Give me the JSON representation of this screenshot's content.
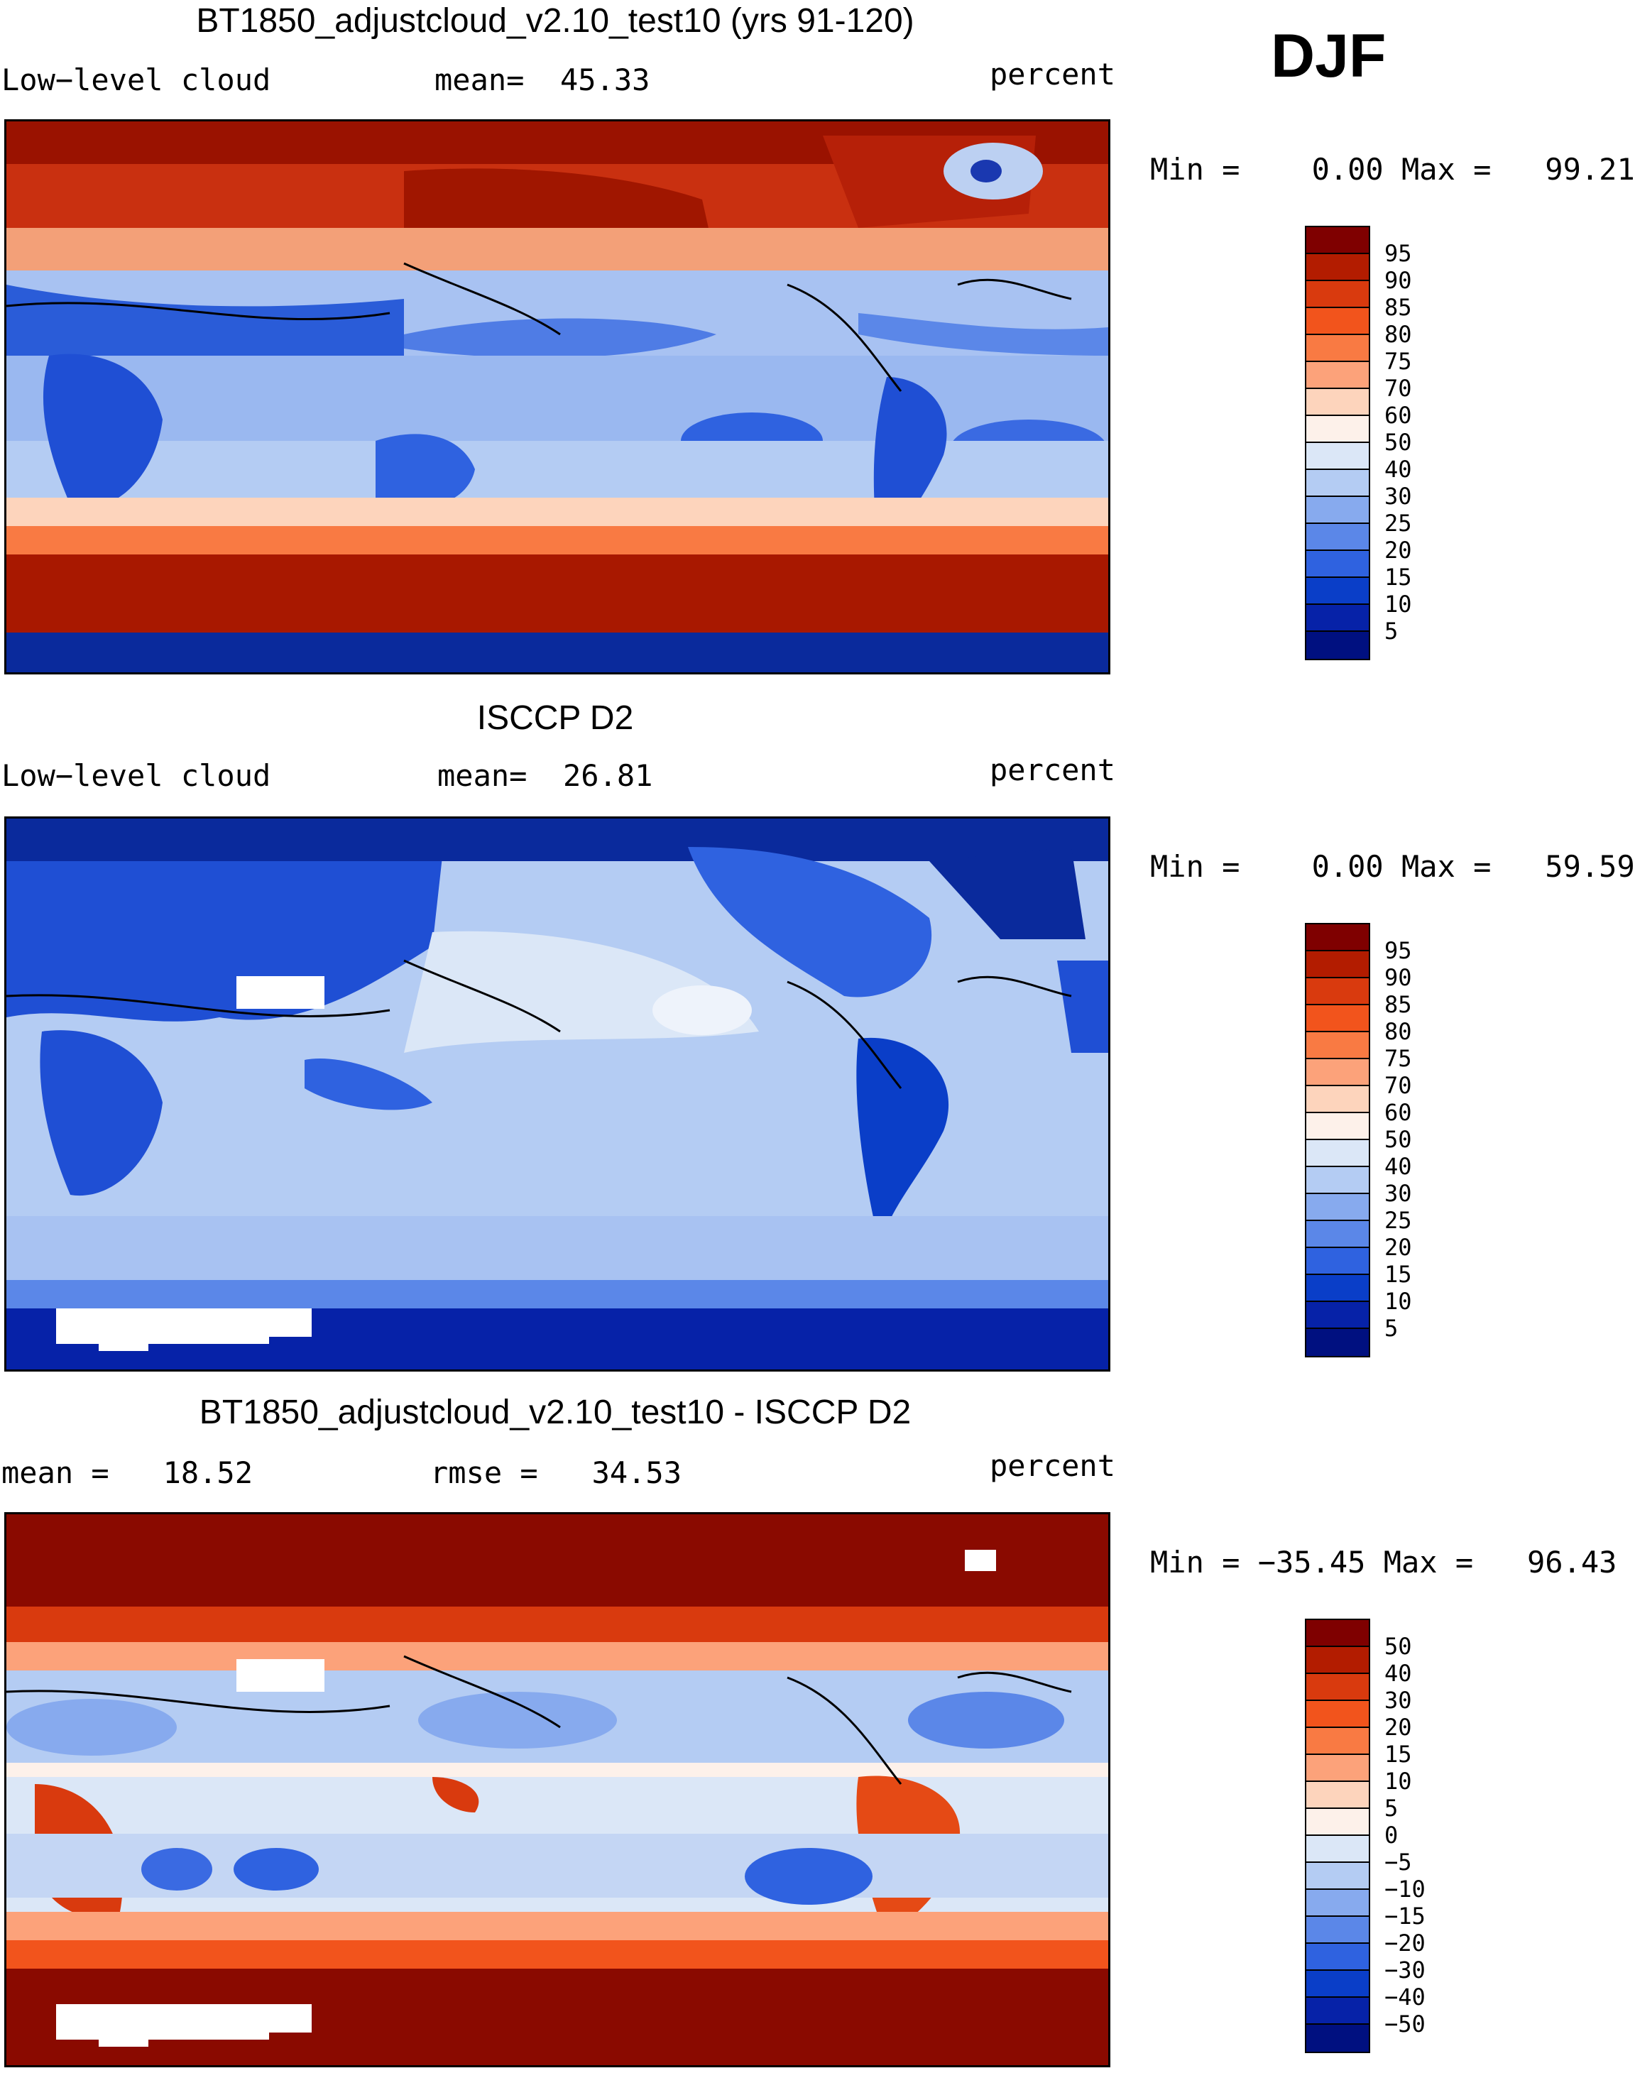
{
  "season": "DJF",
  "panels": [
    {
      "title": "BT1850_adjustcloud_v2.10_test10 (yrs 91-120)",
      "left_label": "Low−level cloud",
      "mean_label": "mean=  45.33",
      "units": "percent",
      "minmax": "Min =    0.00 Max =   99.21",
      "colorbar_labels": [
        "95",
        "90",
        "85",
        "80",
        "75",
        "70",
        "60",
        "50",
        "40",
        "30",
        "25",
        "20",
        "15",
        "10",
        "5"
      ],
      "colorbar_colors": [
        "#7f0000",
        "#b31c00",
        "#d93a0e",
        "#f2541c",
        "#f97a43",
        "#fca27a",
        "#fdd4bc",
        "#fdf1ea",
        "#dbe7f7",
        "#b4ccf3",
        "#87aaee",
        "#5b87e8",
        "#2f62e0",
        "#0a3ec8",
        "#0622a8",
        "#001080"
      ],
      "map": "model"
    },
    {
      "title": "ISCCP D2",
      "left_label": "Low−level cloud",
      "mean_label": "mean=  26.81",
      "units": "percent",
      "minmax": "Min =    0.00 Max =   59.59",
      "colorbar_labels": [
        "95",
        "90",
        "85",
        "80",
        "75",
        "70",
        "60",
        "50",
        "40",
        "30",
        "25",
        "20",
        "15",
        "10",
        "5"
      ],
      "colorbar_colors": [
        "#7f0000",
        "#b31c00",
        "#d93a0e",
        "#f2541c",
        "#f97a43",
        "#fca27a",
        "#fdd4bc",
        "#fdf1ea",
        "#dbe7f7",
        "#b4ccf3",
        "#87aaee",
        "#5b87e8",
        "#2f62e0",
        "#0a3ec8",
        "#0622a8",
        "#001080"
      ],
      "map": "obs"
    },
    {
      "title": "BT1850_adjustcloud_v2.10_test10 - ISCCP D2",
      "left_label": "mean =   18.52",
      "mean_label": "rmse =   34.53",
      "units": "percent",
      "minmax": "Min = −35.45 Max =   96.43",
      "colorbar_labels": [
        "50",
        "40",
        "30",
        "20",
        "15",
        "10",
        "5",
        "0",
        "−5",
        "−10",
        "−15",
        "−20",
        "−30",
        "−40",
        "−50"
      ],
      "colorbar_colors": [
        "#7f0000",
        "#b31c00",
        "#d93a0e",
        "#f2541c",
        "#f97a43",
        "#fca27a",
        "#fdd4bc",
        "#fdf1ea",
        "#dbe7f7",
        "#b4ccf3",
        "#87aaee",
        "#5b87e8",
        "#2f62e0",
        "#0a3ec8",
        "#0622a8",
        "#001080"
      ],
      "map": "diff"
    }
  ]
}
